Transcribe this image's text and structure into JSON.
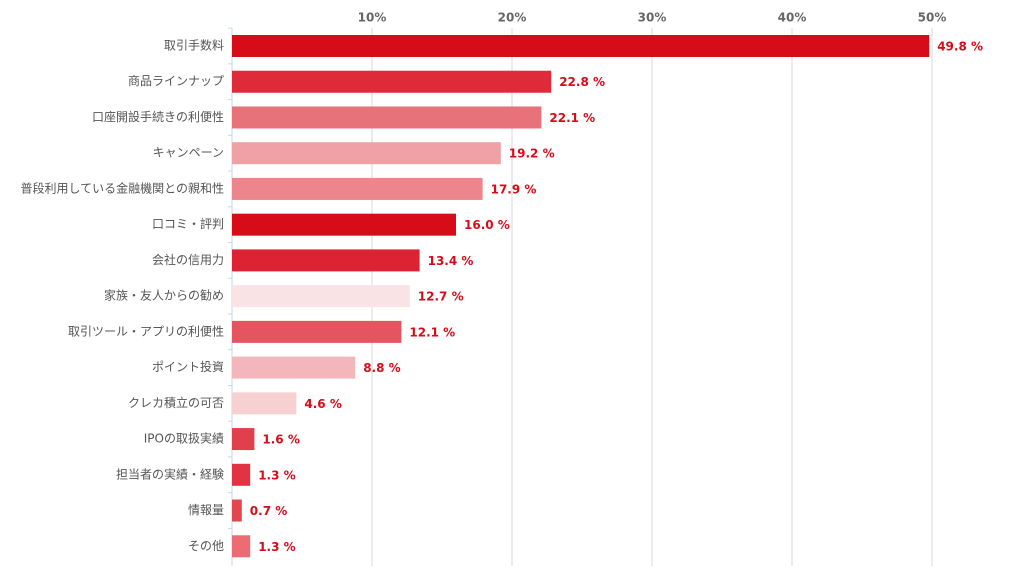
{
  "chart_data": {
    "type": "bar",
    "orientation": "horizontal",
    "categories": [
      "取引手数料",
      "商品ラインナップ",
      "口座開設手続きの利便性",
      "キャンペーン",
      "普段利用している金融機関との親和性",
      "口コミ・評判",
      "会社の信用力",
      "家族・友人からの勧め",
      "取引ツール・アプリの利便性",
      "ポイント投資",
      "クレカ積立の可否",
      "IPOの取扱実績",
      "担当者の実績・経験",
      "情報量",
      "その他"
    ],
    "values": [
      49.8,
      22.8,
      22.1,
      19.2,
      17.9,
      16.0,
      13.4,
      12.7,
      12.1,
      8.8,
      4.6,
      1.6,
      1.3,
      0.7,
      1.3
    ],
    "value_labels": [
      "49.8 %",
      "22.8 %",
      "22.1 %",
      "19.2 %",
      "17.9 %",
      "16.0 %",
      "13.4 %",
      "12.7 %",
      "12.1 %",
      "8.8 %",
      "4.6 %",
      "1.6 %",
      "1.3 %",
      "0.7 %",
      "1.3 %"
    ],
    "colors": [
      "#d70c19",
      "#df2a3a",
      "#e8727a",
      "#f0a1a6",
      "#ec868c",
      "#d70c19",
      "#dd2333",
      "#fae3e5",
      "#e45560",
      "#f3b7bb",
      "#f7d0d2",
      "#e0404b",
      "#e03443",
      "#e2474f",
      "#eb6c75"
    ],
    "xlim": [
      0,
      50
    ],
    "xticks": [
      {
        "value": 10,
        "label": "10%"
      },
      {
        "value": 20,
        "label": "20%"
      },
      {
        "value": 30,
        "label": "30%"
      },
      {
        "value": 40,
        "label": "40%"
      },
      {
        "value": 50,
        "label": "50%"
      }
    ],
    "grid": true
  }
}
